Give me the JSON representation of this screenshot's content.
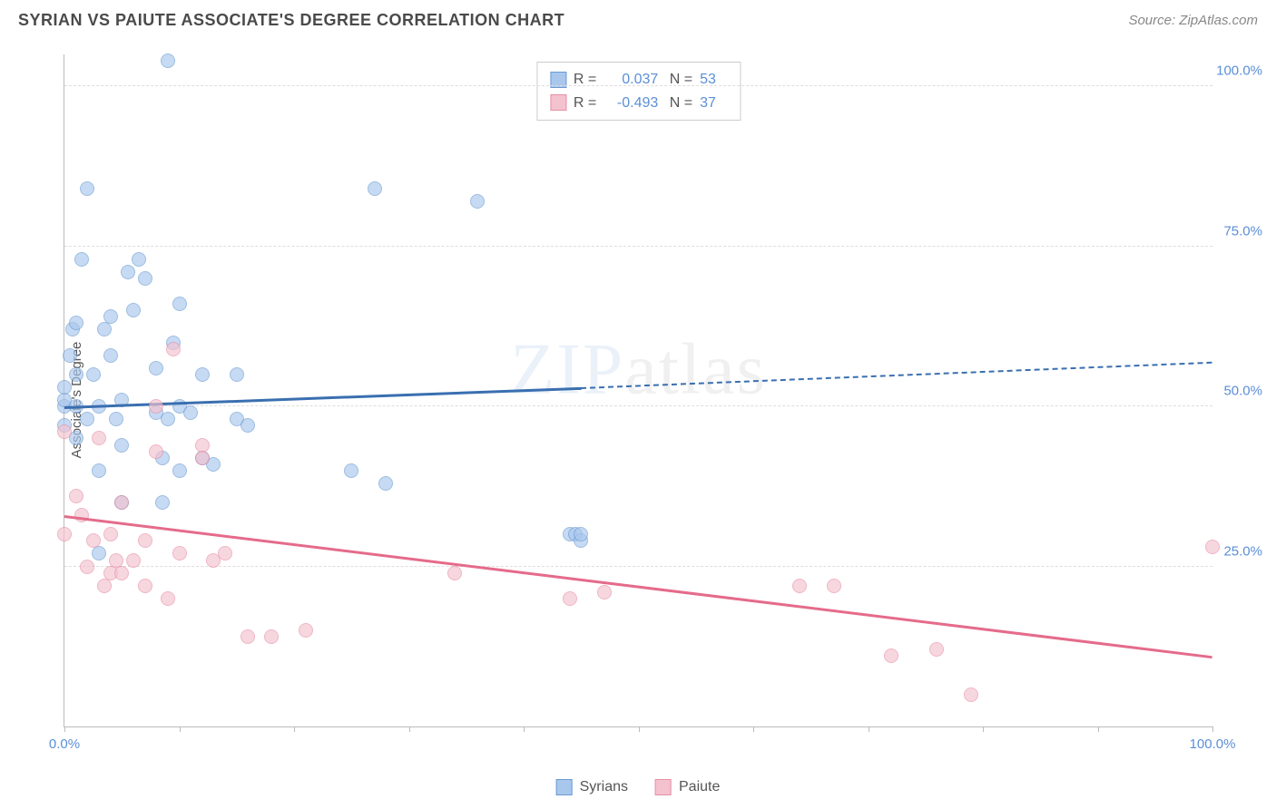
{
  "header": {
    "title": "SYRIAN VS PAIUTE ASSOCIATE'S DEGREE CORRELATION CHART",
    "source": "Source: ZipAtlas.com"
  },
  "watermark": {
    "zip": "ZIP",
    "atlas": "atlas"
  },
  "chart": {
    "type": "scatter",
    "y_label": "Associate's Degree",
    "xlim": [
      0,
      100
    ],
    "ylim": [
      0,
      105
    ],
    "x_ticks": [
      0,
      10,
      20,
      30,
      40,
      50,
      60,
      70,
      80,
      90,
      100
    ],
    "x_tick_labels": {
      "0": "0.0%",
      "100": "100.0%"
    },
    "y_gridlines": [
      25,
      50,
      75,
      100
    ],
    "y_tick_labels": {
      "25": "25.0%",
      "50": "50.0%",
      "75": "75.0%",
      "100": "100.0%"
    },
    "background_color": "#ffffff",
    "grid_color": "#dddddd",
    "axis_color": "#bbbbbb",
    "tick_label_color": "#5b8fd6",
    "marker_radius": 8,
    "marker_opacity": 0.65,
    "series": [
      {
        "name": "Syrians",
        "fill_color": "#a9c7ed",
        "stroke_color": "#6b9bd1",
        "line_color": "#3a6fb0",
        "R": "0.037",
        "N": "53",
        "trend": {
          "x1": 0,
          "y1": 50,
          "x2": 45,
          "y2": 53,
          "dash_to_x": 100,
          "dash_to_y": 57
        },
        "points": [
          [
            0,
            47
          ],
          [
            0,
            50
          ],
          [
            0,
            51
          ],
          [
            0,
            53
          ],
          [
            0.5,
            58
          ],
          [
            0.7,
            62
          ],
          [
            1,
            45
          ],
          [
            1,
            50
          ],
          [
            1,
            55
          ],
          [
            1,
            63
          ],
          [
            1.5,
            73
          ],
          [
            2,
            84
          ],
          [
            2,
            48
          ],
          [
            2.5,
            55
          ],
          [
            3,
            27
          ],
          [
            3,
            40
          ],
          [
            3,
            50
          ],
          [
            3.5,
            62
          ],
          [
            4,
            58
          ],
          [
            4,
            64
          ],
          [
            4.5,
            48
          ],
          [
            5,
            35
          ],
          [
            5,
            44
          ],
          [
            5,
            51
          ],
          [
            5.5,
            71
          ],
          [
            6,
            65
          ],
          [
            6.5,
            73
          ],
          [
            7,
            70
          ],
          [
            8,
            49
          ],
          [
            8,
            56
          ],
          [
            8.5,
            35
          ],
          [
            8.5,
            42
          ],
          [
            9,
            48
          ],
          [
            9,
            104
          ],
          [
            9.5,
            60
          ],
          [
            10,
            40
          ],
          [
            10,
            50
          ],
          [
            10,
            66
          ],
          [
            11,
            49
          ],
          [
            12,
            55
          ],
          [
            12,
            42
          ],
          [
            13,
            41
          ],
          [
            15,
            55
          ],
          [
            15,
            48
          ],
          [
            16,
            47
          ],
          [
            25,
            40
          ],
          [
            27,
            84
          ],
          [
            28,
            38
          ],
          [
            36,
            82
          ],
          [
            44,
            30
          ],
          [
            44.5,
            30
          ],
          [
            45,
            29
          ],
          [
            45,
            30
          ]
        ]
      },
      {
        "name": "Paiute",
        "fill_color": "#f4c2ce",
        "stroke_color": "#e78fa5",
        "line_color": "#e56b8a",
        "R": "-0.493",
        "N": "37",
        "trend": {
          "x1": 0,
          "y1": 33,
          "x2": 100,
          "y2": 11
        },
        "points": [
          [
            0,
            30
          ],
          [
            0,
            46
          ],
          [
            1,
            36
          ],
          [
            1.5,
            33
          ],
          [
            2,
            25
          ],
          [
            2.5,
            29
          ],
          [
            3,
            45
          ],
          [
            3.5,
            22
          ],
          [
            4,
            24
          ],
          [
            4,
            30
          ],
          [
            4.5,
            26
          ],
          [
            5,
            24
          ],
          [
            5,
            35
          ],
          [
            6,
            26
          ],
          [
            7,
            22
          ],
          [
            7,
            29
          ],
          [
            8,
            50
          ],
          [
            8,
            43
          ],
          [
            9,
            20
          ],
          [
            9.5,
            59
          ],
          [
            10,
            27
          ],
          [
            12,
            44
          ],
          [
            12,
            42
          ],
          [
            13,
            26
          ],
          [
            14,
            27
          ],
          [
            16,
            14
          ],
          [
            18,
            14
          ],
          [
            21,
            15
          ],
          [
            34,
            24
          ],
          [
            44,
            20
          ],
          [
            47,
            21
          ],
          [
            64,
            22
          ],
          [
            67,
            22
          ],
          [
            72,
            11
          ],
          [
            76,
            12
          ],
          [
            79,
            5
          ],
          [
            100,
            28
          ]
        ]
      }
    ],
    "bottom_legend": [
      "Syrians",
      "Paiute"
    ]
  }
}
